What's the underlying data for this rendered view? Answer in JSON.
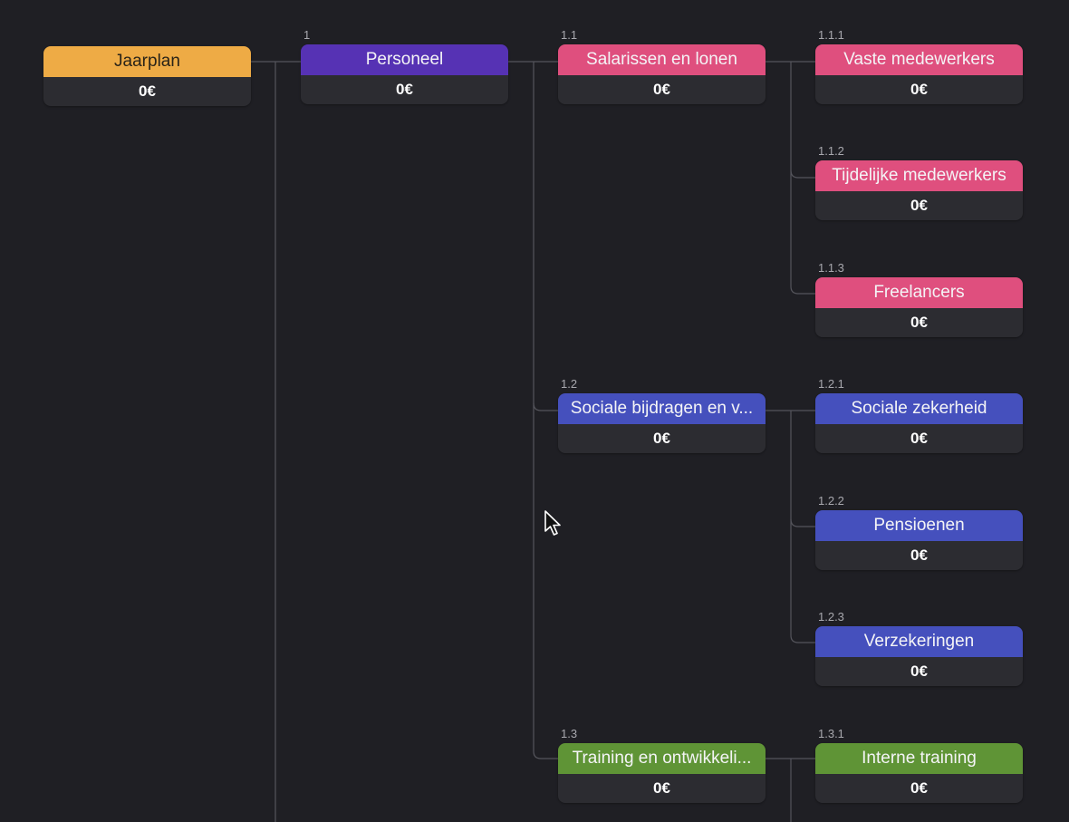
{
  "colors": {
    "background": "#1f1f24",
    "amount_bg": "#2c2c31",
    "connector": "#55555c",
    "root": "#eeab45",
    "level1": "#5632b4",
    "salary": "#df4f7e",
    "social": "#4550bd",
    "training": "#5f9436"
  },
  "nodes": {
    "root": {
      "title": "Jaarplan",
      "amount": "0€"
    },
    "n1": {
      "num": "1",
      "title": "Personeel",
      "amount": "0€"
    },
    "n1_1": {
      "num": "1.1",
      "title": "Salarissen en lonen",
      "amount": "0€"
    },
    "n1_1_1": {
      "num": "1.1.1",
      "title": "Vaste medewerkers",
      "amount": "0€"
    },
    "n1_1_2": {
      "num": "1.1.2",
      "title": "Tijdelijke medewerkers",
      "amount": "0€"
    },
    "n1_1_3": {
      "num": "1.1.3",
      "title": "Freelancers",
      "amount": "0€"
    },
    "n1_2": {
      "num": "1.2",
      "title": "Sociale bijdragen en v...",
      "amount": "0€"
    },
    "n1_2_1": {
      "num": "1.2.1",
      "title": "Sociale zekerheid",
      "amount": "0€"
    },
    "n1_2_2": {
      "num": "1.2.2",
      "title": "Pensioenen",
      "amount": "0€"
    },
    "n1_2_3": {
      "num": "1.2.3",
      "title": "Verzekeringen",
      "amount": "0€"
    },
    "n1_3": {
      "num": "1.3",
      "title": "Training en ontwikkeli...",
      "amount": "0€"
    },
    "n1_3_1": {
      "num": "1.3.1",
      "title": "Interne training",
      "amount": "0€"
    }
  }
}
